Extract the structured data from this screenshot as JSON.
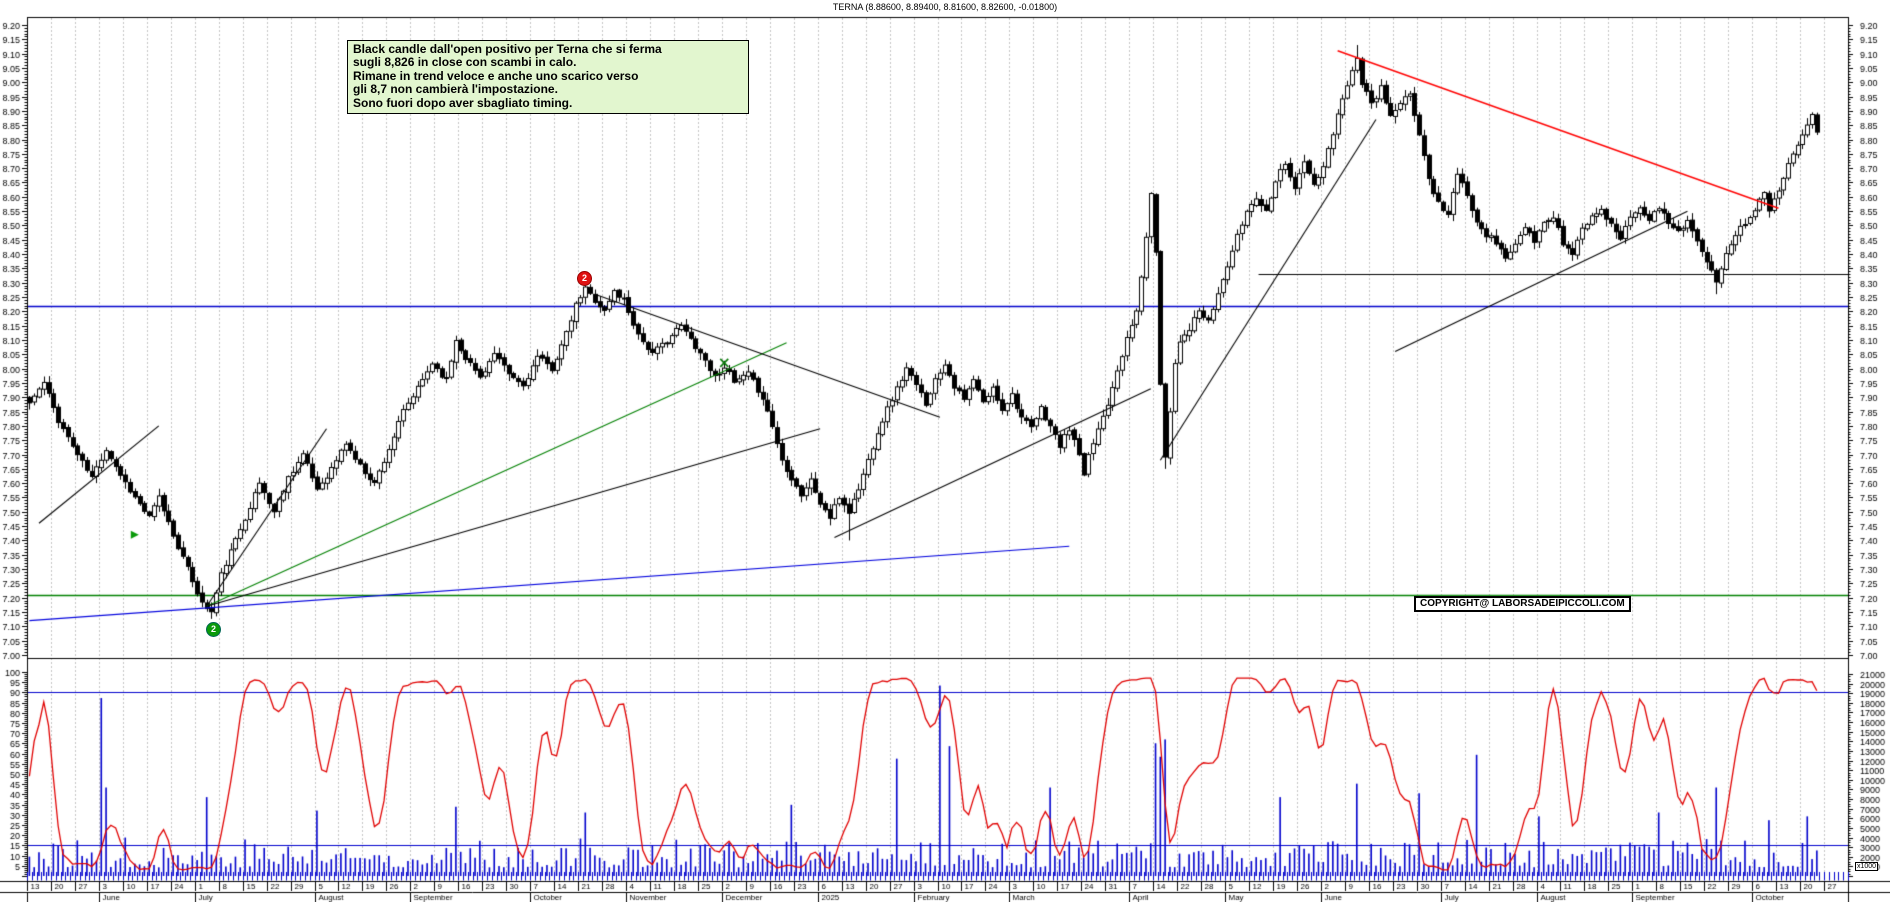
{
  "title": "TERNA (8.88600, 8.89400, 8.81600, 8.82600, -0.01800)",
  "annotation": {
    "lines": [
      "Black candle dall'open positivo per Terna che si ferma",
      "sugli 8,826 in close con scambi in calo.",
      "Rimane in trend veloce e anche uno scarico verso",
      "gli 8,7 non cambierà l'impostazione.",
      "Sono fuori dopo aver sbagliato timing."
    ],
    "bg_color": "#e2f6cf"
  },
  "copyright": "COPYRIGHT@ LABORSADEIPICCOLI.COM",
  "price_axis": {
    "min": 7.0,
    "max": 9.2,
    "label_step": 0.05,
    "minor_step": 0.01
  },
  "indicator_axis": {
    "min": 0,
    "max": 100,
    "label_step": 5,
    "minor_step": 1
  },
  "volume_axis": {
    "min": 0,
    "max": 21000,
    "label_step": 1000,
    "minor_step": 250,
    "multiplier": "x1000"
  },
  "x_axis": {
    "months": [
      {
        "label": "",
        "weeks": [
          "13",
          "20",
          "27"
        ]
      },
      {
        "label": "June",
        "weeks": [
          "3",
          "10",
          "17",
          "24"
        ]
      },
      {
        "label": "July",
        "weeks": [
          "1",
          "8",
          "15",
          "22",
          "29"
        ]
      },
      {
        "label": "August",
        "weeks": [
          "5",
          "12",
          "19",
          "26"
        ]
      },
      {
        "label": "September",
        "weeks": [
          "2",
          "9",
          "16",
          "23",
          "30"
        ]
      },
      {
        "label": "October",
        "weeks": [
          "7",
          "14",
          "21",
          "28"
        ]
      },
      {
        "label": "November",
        "weeks": [
          "4",
          "11",
          "18",
          "25"
        ]
      },
      {
        "label": "December",
        "weeks": [
          "2",
          "9",
          "16",
          "23"
        ]
      },
      {
        "label": "2025",
        "weeks": [
          "6",
          "13",
          "20",
          "27"
        ]
      },
      {
        "label": "February",
        "weeks": [
          "3",
          "10",
          "17",
          "24"
        ]
      },
      {
        "label": "March",
        "weeks": [
          "3",
          "10",
          "17",
          "24",
          "31"
        ]
      },
      {
        "label": "April",
        "weeks": [
          "7",
          "14",
          "22",
          "28"
        ]
      },
      {
        "label": "May",
        "weeks": [
          "5",
          "12",
          "19",
          "26"
        ]
      },
      {
        "label": "June",
        "weeks": [
          "2",
          "9",
          "16",
          "23",
          "30"
        ]
      },
      {
        "label": "July",
        "weeks": [
          "7",
          "14",
          "21",
          "28"
        ]
      },
      {
        "label": "August",
        "weeks": [
          "4",
          "11",
          "18",
          "25"
        ]
      },
      {
        "label": "September",
        "weeks": [
          "1",
          "8",
          "15",
          "22",
          "29"
        ]
      },
      {
        "label": "October",
        "weeks": [
          "6",
          "13",
          "20",
          "27"
        ]
      }
    ]
  },
  "colors": {
    "candle_up": "#ffffff",
    "candle_down": "#000000",
    "candle_outline": "#000000",
    "oscillator": "#e00000",
    "volume": "#0000cc",
    "grid": "#c5c5c5",
    "trend_blue": "#0000dd",
    "trend_green": "#008000",
    "trend_red": "#ff0000",
    "level_blue": "#0000cc",
    "level_green": "#008000"
  },
  "chart_data": {
    "type": "candlestick",
    "title": "TERNA daily with volume and stochastic oscillator",
    "ylim": [
      7.0,
      9.2
    ],
    "days_total": 380,
    "last_candle": {
      "open": 8.886,
      "high": 8.894,
      "low": 8.816,
      "close": 8.826,
      "change": -0.018
    },
    "price_anchors": [
      [
        0,
        7.88
      ],
      [
        3,
        7.95
      ],
      [
        6,
        7.82
      ],
      [
        10,
        7.7
      ],
      [
        13,
        7.62
      ],
      [
        16,
        7.72
      ],
      [
        19,
        7.63
      ],
      [
        22,
        7.55
      ],
      [
        25,
        7.48
      ],
      [
        27,
        7.55
      ],
      [
        30,
        7.42
      ],
      [
        33,
        7.3
      ],
      [
        36,
        7.18
      ],
      [
        38,
        7.15
      ],
      [
        40,
        7.28
      ],
      [
        43,
        7.4
      ],
      [
        46,
        7.52
      ],
      [
        48,
        7.6
      ],
      [
        51,
        7.5
      ],
      [
        54,
        7.62
      ],
      [
        57,
        7.7
      ],
      [
        60,
        7.58
      ],
      [
        63,
        7.65
      ],
      [
        66,
        7.74
      ],
      [
        69,
        7.66
      ],
      [
        72,
        7.6
      ],
      [
        75,
        7.72
      ],
      [
        78,
        7.85
      ],
      [
        81,
        7.93
      ],
      [
        84,
        8.02
      ],
      [
        87,
        7.96
      ],
      [
        89,
        8.1
      ],
      [
        91,
        8.04
      ],
      [
        94,
        7.97
      ],
      [
        97,
        8.05
      ],
      [
        100,
        7.98
      ],
      [
        103,
        7.94
      ],
      [
        106,
        8.04
      ],
      [
        109,
        8.0
      ],
      [
        112,
        8.12
      ],
      [
        114,
        8.22
      ],
      [
        116,
        8.28
      ],
      [
        118,
        8.24
      ],
      [
        120,
        8.2
      ],
      [
        122,
        8.27
      ],
      [
        124,
        8.24
      ],
      [
        127,
        8.12
      ],
      [
        130,
        8.05
      ],
      [
        133,
        8.1
      ],
      [
        136,
        8.15
      ],
      [
        139,
        8.08
      ],
      [
        141,
        8.03
      ],
      [
        143,
        7.97
      ],
      [
        145,
        8.01
      ],
      [
        147,
        7.95
      ],
      [
        150,
        7.98
      ],
      [
        153,
        7.9
      ],
      [
        155,
        7.8
      ],
      [
        157,
        7.68
      ],
      [
        159,
        7.62
      ],
      [
        161,
        7.56
      ],
      [
        163,
        7.61
      ],
      [
        165,
        7.53
      ],
      [
        167,
        7.48
      ],
      [
        169,
        7.55
      ],
      [
        171,
        7.5
      ],
      [
        173,
        7.58
      ],
      [
        175,
        7.68
      ],
      [
        177,
        7.78
      ],
      [
        179,
        7.86
      ],
      [
        181,
        7.93
      ],
      [
        183,
        8.0
      ],
      [
        185,
        7.94
      ],
      [
        187,
        7.88
      ],
      [
        189,
        7.96
      ],
      [
        191,
        8.02
      ],
      [
        193,
        7.94
      ],
      [
        195,
        7.89
      ],
      [
        197,
        7.96
      ],
      [
        199,
        7.88
      ],
      [
        201,
        7.93
      ],
      [
        203,
        7.86
      ],
      [
        205,
        7.91
      ],
      [
        207,
        7.83
      ],
      [
        209,
        7.79
      ],
      [
        211,
        7.86
      ],
      [
        213,
        7.8
      ],
      [
        215,
        7.73
      ],
      [
        217,
        7.79
      ],
      [
        219,
        7.7
      ],
      [
        220,
        7.62
      ],
      [
        221,
        7.69
      ],
      [
        223,
        7.79
      ],
      [
        225,
        7.88
      ],
      [
        227,
        8.0
      ],
      [
        229,
        8.1
      ],
      [
        231,
        8.2
      ],
      [
        233,
        8.45
      ],
      [
        234,
        8.62
      ],
      [
        235,
        8.4
      ],
      [
        236,
        7.95
      ],
      [
        237,
        7.7
      ],
      [
        238,
        7.85
      ],
      [
        239,
        8.02
      ],
      [
        240,
        8.1
      ],
      [
        242,
        8.14
      ],
      [
        244,
        8.2
      ],
      [
        246,
        8.16
      ],
      [
        248,
        8.26
      ],
      [
        250,
        8.36
      ],
      [
        252,
        8.46
      ],
      [
        254,
        8.55
      ],
      [
        256,
        8.6
      ],
      [
        258,
        8.55
      ],
      [
        260,
        8.66
      ],
      [
        262,
        8.72
      ],
      [
        264,
        8.63
      ],
      [
        266,
        8.72
      ],
      [
        268,
        8.64
      ],
      [
        270,
        8.7
      ],
      [
        272,
        8.82
      ],
      [
        274,
        8.95
      ],
      [
        276,
        9.04
      ],
      [
        277,
        9.08
      ],
      [
        278,
        9.0
      ],
      [
        280,
        8.92
      ],
      [
        282,
        8.98
      ],
      [
        284,
        8.88
      ],
      [
        286,
        8.92
      ],
      [
        288,
        8.96
      ],
      [
        290,
        8.82
      ],
      [
        292,
        8.66
      ],
      [
        294,
        8.58
      ],
      [
        296,
        8.54
      ],
      [
        298,
        8.68
      ],
      [
        300,
        8.6
      ],
      [
        302,
        8.52
      ],
      [
        304,
        8.47
      ],
      [
        306,
        8.44
      ],
      [
        308,
        8.39
      ],
      [
        310,
        8.43
      ],
      [
        312,
        8.49
      ],
      [
        314,
        8.44
      ],
      [
        316,
        8.51
      ],
      [
        318,
        8.53
      ],
      [
        320,
        8.44
      ],
      [
        322,
        8.4
      ],
      [
        324,
        8.49
      ],
      [
        326,
        8.53
      ],
      [
        328,
        8.56
      ],
      [
        330,
        8.5
      ],
      [
        332,
        8.46
      ],
      [
        334,
        8.53
      ],
      [
        336,
        8.57
      ],
      [
        338,
        8.52
      ],
      [
        340,
        8.56
      ],
      [
        342,
        8.51
      ],
      [
        344,
        8.48
      ],
      [
        346,
        8.52
      ],
      [
        348,
        8.44
      ],
      [
        350,
        8.37
      ],
      [
        352,
        8.3
      ],
      [
        354,
        8.41
      ],
      [
        356,
        8.47
      ],
      [
        358,
        8.51
      ],
      [
        360,
        8.56
      ],
      [
        362,
        8.61
      ],
      [
        363,
        8.56
      ],
      [
        365,
        8.63
      ],
      [
        367,
        8.71
      ],
      [
        369,
        8.79
      ],
      [
        371,
        8.86
      ],
      [
        372,
        8.89
      ],
      [
        373,
        8.826
      ]
    ],
    "wick_overrides": {
      "277": {
        "h": 9.13
      },
      "237": {
        "l": 7.65
      },
      "171": {
        "l": 7.4
      },
      "352": {
        "l": 8.26
      }
    },
    "volume_spikes": {
      "15": 18500,
      "16": 9200,
      "37": 8200,
      "60": 6800,
      "89": 7200,
      "116": 6600,
      "159": 7400,
      "181": 12200,
      "190": 19800,
      "192": 13500,
      "213": 9200,
      "235": 13800,
      "236": 12400,
      "237": 14200,
      "261": 8200,
      "277": 9600,
      "290": 8600,
      "302": 12600,
      "315": 6200,
      "340": 6600,
      "352": 9200,
      "363": 5800,
      "371": 6200
    },
    "horizontal_levels": [
      {
        "price": 8.22,
        "color": "#0000cc",
        "d1": 0,
        "d2": 380
      },
      {
        "price": 7.21,
        "color": "#008000",
        "d1": 0,
        "d2": 380
      },
      {
        "price": 8.33,
        "color": "#000000",
        "d1": 257,
        "d2": 380
      }
    ],
    "indicator_levels": [
      90,
      15
    ],
    "trendlines": [
      {
        "color": "#000000",
        "d1": 2,
        "p1": 7.46,
        "d2": 27,
        "p2": 7.8
      },
      {
        "color": "#000000",
        "d1": 37,
        "p1": 7.17,
        "d2": 62,
        "p2": 7.79
      },
      {
        "color": "#008000",
        "d1": 37,
        "p1": 7.17,
        "d2": 158,
        "p2": 8.09
      },
      {
        "color": "#000000",
        "d1": 37,
        "p1": 7.17,
        "d2": 165,
        "p2": 7.79
      },
      {
        "color": "#0000dd",
        "d1": 0,
        "p1": 7.12,
        "d2": 217,
        "p2": 7.38
      },
      {
        "color": "#000000",
        "d1": 118,
        "p1": 8.26,
        "d2": 190,
        "p2": 7.83
      },
      {
        "color": "#000000",
        "d1": 168,
        "p1": 7.41,
        "d2": 234,
        "p2": 7.93
      },
      {
        "color": "#000000",
        "d1": 236,
        "p1": 7.68,
        "d2": 281,
        "p2": 8.87
      },
      {
        "color": "#ff0000",
        "d1": 273,
        "p1": 9.11,
        "d2": 365,
        "p2": 8.56
      },
      {
        "color": "#000000",
        "d1": 285,
        "p1": 8.06,
        "d2": 346,
        "p2": 8.55
      }
    ],
    "markers": [
      {
        "type": "circle",
        "label": "2",
        "color": "#e01212",
        "day": 116,
        "price": 8.32
      },
      {
        "type": "circle",
        "label": "2",
        "color": "#0a9a0a",
        "day": 39,
        "price": 7.09
      },
      {
        "type": "arrow-right",
        "color": "#0a9a0a",
        "day": 22,
        "price": 7.42
      },
      {
        "type": "cross",
        "color": "#0a7a0a",
        "day": 145,
        "price": 8.02
      }
    ]
  }
}
